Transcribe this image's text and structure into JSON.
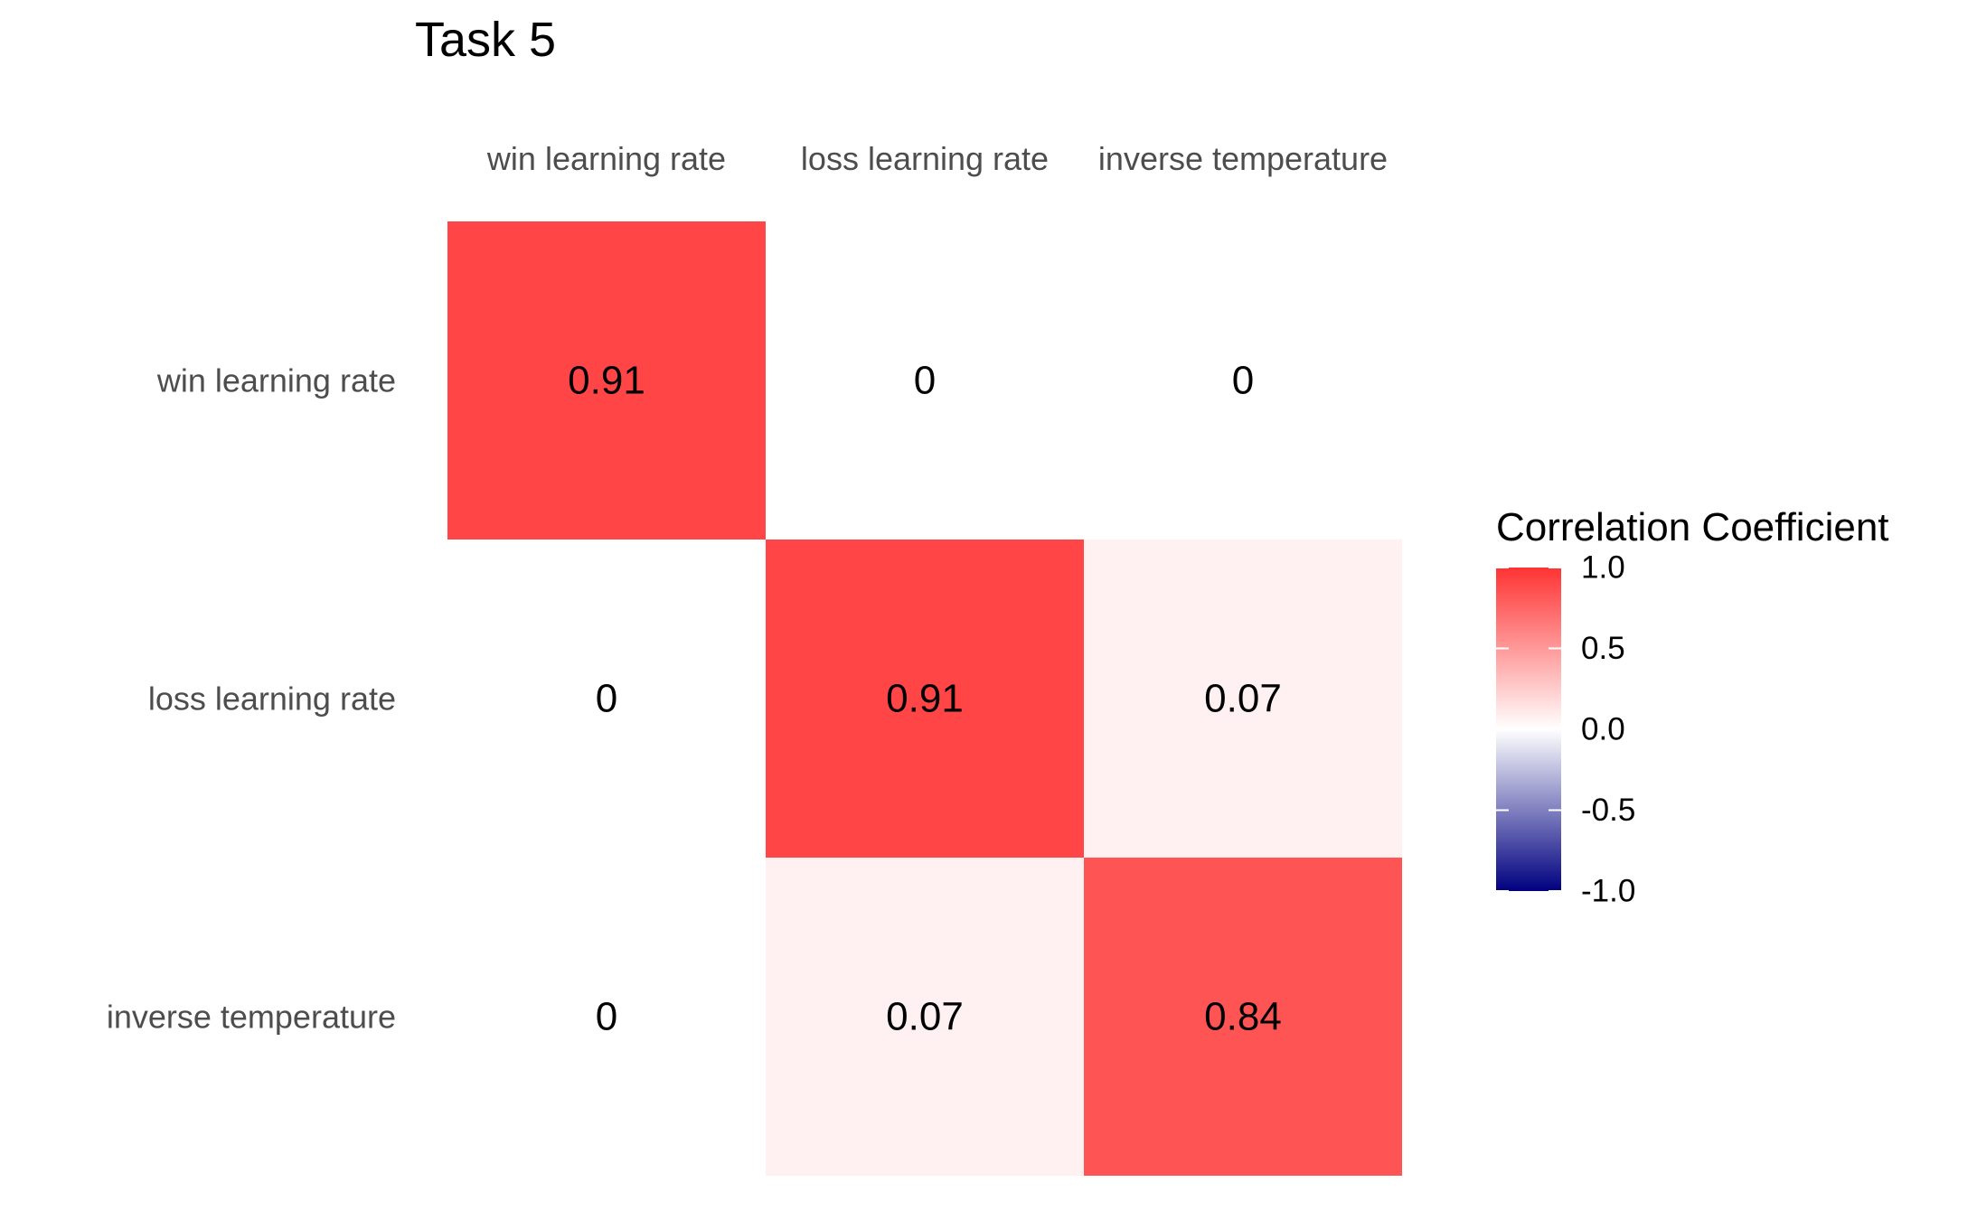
{
  "chart_data": {
    "type": "heatmap",
    "title": "Task 5",
    "x_categories": [
      "win learning rate",
      "loss learning rate",
      "inverse temperature"
    ],
    "y_categories": [
      "win learning rate",
      "loss learning rate",
      "inverse temperature"
    ],
    "values": [
      [
        0.91,
        0,
        0
      ],
      [
        0,
        0.91,
        0.07
      ],
      [
        0,
        0.07,
        0.84
      ]
    ],
    "value_labels": [
      [
        "0.91",
        "0",
        "0"
      ],
      [
        "0",
        "0.91",
        "0.07"
      ],
      [
        "0",
        "0.07",
        "0.84"
      ]
    ],
    "legend": {
      "title": "Correlation Coefficient",
      "placement": "right",
      "range": [
        -1,
        1
      ],
      "ticks": [
        1.0,
        0.5,
        0.0,
        -0.5,
        -1.0
      ],
      "tick_labels": [
        "1.0",
        "0.5",
        "0.0",
        "-0.5",
        "-1.0"
      ],
      "colors": {
        "low": "#000080",
        "mid": "#ffffff",
        "high": "#ff3333"
      }
    },
    "grid": false
  }
}
